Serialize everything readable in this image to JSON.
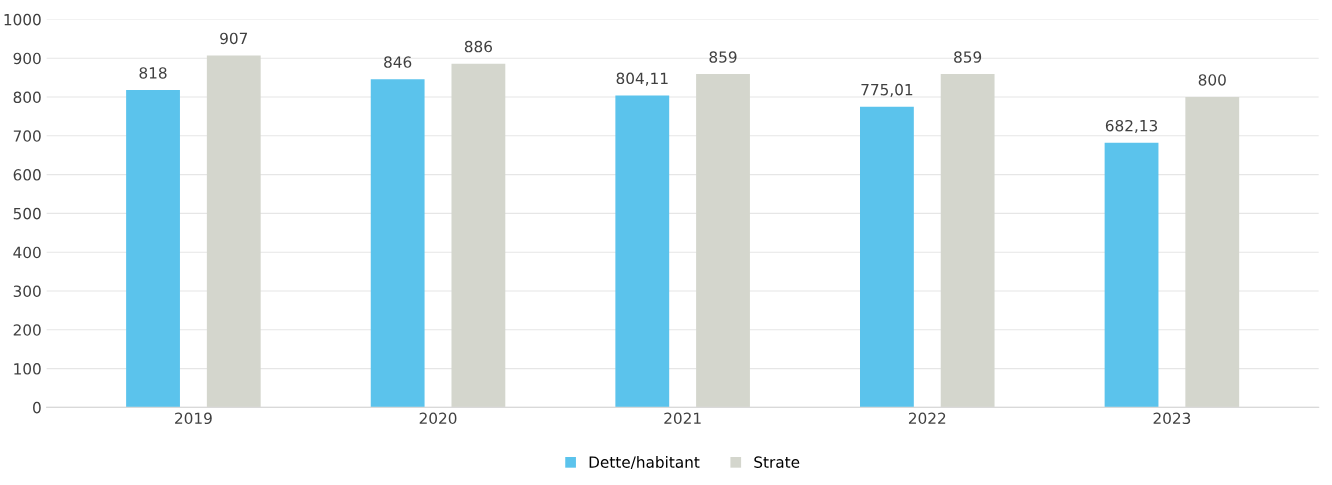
{
  "chart_data": {
    "type": "bar",
    "categories": [
      "2019",
      "2020",
      "2021",
      "2022",
      "2023"
    ],
    "series": [
      {
        "name": "Dette/habitant",
        "color": "#5bc3ec",
        "values": [
          818,
          846,
          804.11,
          775.01,
          682.13
        ],
        "value_labels": [
          "818",
          "846",
          "804,11",
          "775,01",
          "682,13"
        ]
      },
      {
        "name": "Strate",
        "color": "#d4d6cd",
        "values": [
          907,
          886,
          859,
          859,
          800
        ],
        "value_labels": [
          "907",
          "886",
          "859",
          "859",
          "800"
        ]
      }
    ],
    "ylim": [
      0,
      1000
    ],
    "yticks": [
      0,
      100,
      200,
      300,
      400,
      500,
      600,
      700,
      800,
      900,
      1000
    ],
    "grid": "y",
    "legend": "bottom"
  }
}
